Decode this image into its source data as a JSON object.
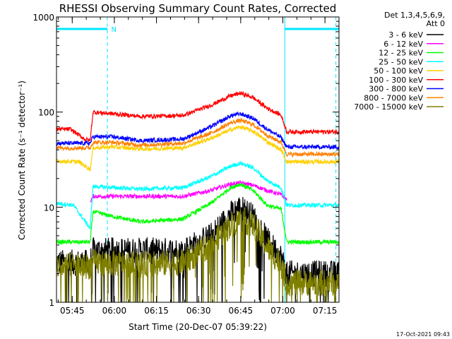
{
  "chart_data": {
    "type": "line",
    "title": "RHESSI Observing Summary Count Rates, Corrected",
    "xlabel": "Start Time (20-Dec-07 05:39:22)",
    "ylabel": "Corrected Count Rate (s⁻¹ detector⁻¹)",
    "yscale": "log",
    "ylim": [
      1,
      1000
    ],
    "xlim_minutes": [
      0,
      100.6
    ],
    "x_ticks": [
      {
        "label": "05:45",
        "minute": 5.6
      },
      {
        "label": "06:00",
        "minute": 20.6
      },
      {
        "label": "06:15",
        "minute": 35.6
      },
      {
        "label": "06:30",
        "minute": 50.6
      },
      {
        "label": "06:45",
        "minute": 65.6
      },
      {
        "label": "07:00",
        "minute": 80.6
      },
      {
        "label": "07:15",
        "minute": 95.6
      }
    ],
    "y_ticks": [
      {
        "label": "1",
        "value": 1
      },
      {
        "label": "10",
        "value": 10
      },
      {
        "label": "100",
        "value": 100
      },
      {
        "label": "1000",
        "value": 1000
      }
    ],
    "legend_header": [
      "Det 1,3,4,5,6,9,",
      "Att 0"
    ],
    "legend_position": "right",
    "night_intervals_minutes": [
      [
        0,
        18.1
      ],
      [
        81.3,
        100.6
      ]
    ],
    "saa_marker": {
      "label": "N",
      "minute": 19.0
    },
    "dashed_markers_minutes": [
      18.1,
      99.5
    ],
    "series": [
      {
        "name": "3 - 6 keV",
        "color": "#000000",
        "values": [
          [
            0,
            2.6
          ],
          [
            12,
            2.6
          ],
          [
            13,
            3.5
          ],
          [
            30,
            3.5
          ],
          [
            45,
            3.5
          ],
          [
            55,
            5
          ],
          [
            62,
            8.5
          ],
          [
            65.5,
            10
          ],
          [
            70,
            8
          ],
          [
            75,
            4.5
          ],
          [
            80,
            3
          ],
          [
            82,
            2
          ],
          [
            100.6,
            2
          ]
        ]
      },
      {
        "name": "6 - 12 keV",
        "color": "#ff00ff",
        "values": [
          [
            12,
            11.5
          ],
          [
            13,
            13
          ],
          [
            30,
            13
          ],
          [
            45,
            13
          ],
          [
            55,
            15
          ],
          [
            62,
            17.5
          ],
          [
            65.5,
            18
          ],
          [
            70,
            17
          ],
          [
            75,
            15
          ],
          [
            80,
            13.5
          ],
          [
            82,
            12
          ]
        ]
      },
      {
        "name": "12 - 25 keV",
        "color": "#00ff00",
        "values": [
          [
            0,
            4.3
          ],
          [
            5,
            4.3
          ],
          [
            12,
            4.3
          ],
          [
            13,
            9
          ],
          [
            20,
            8
          ],
          [
            30,
            7
          ],
          [
            45,
            7.5
          ],
          [
            55,
            11
          ],
          [
            62,
            16
          ],
          [
            65.5,
            17.5
          ],
          [
            70,
            15
          ],
          [
            75,
            10.5
          ],
          [
            80,
            9.5
          ],
          [
            82,
            4.3
          ],
          [
            100.6,
            4.3
          ]
        ]
      },
      {
        "name": "25 - 50 keV",
        "color": "#00ffff",
        "values": [
          [
            0,
            11
          ],
          [
            6,
            10.5
          ],
          [
            12,
            6
          ],
          [
            13,
            16.5
          ],
          [
            30,
            15.5
          ],
          [
            45,
            16
          ],
          [
            55,
            21
          ],
          [
            62,
            27
          ],
          [
            65.5,
            29
          ],
          [
            70,
            26
          ],
          [
            75,
            19
          ],
          [
            80,
            16
          ],
          [
            82,
            10.5
          ],
          [
            100.6,
            10.5
          ]
        ]
      },
      {
        "name": "50 - 100 keV",
        "color": "#ffd000",
        "values": [
          [
            0,
            30.5
          ],
          [
            8,
            30
          ],
          [
            12,
            25
          ],
          [
            13,
            42
          ],
          [
            20,
            43
          ],
          [
            30,
            41
          ],
          [
            45,
            42
          ],
          [
            55,
            53
          ],
          [
            62,
            65
          ],
          [
            65.5,
            70
          ],
          [
            70,
            63
          ],
          [
            75,
            49
          ],
          [
            80,
            40
          ],
          [
            82,
            30
          ],
          [
            100.6,
            30
          ]
        ]
      },
      {
        "name": "100 - 300 keV",
        "color": "#ff0000",
        "values": [
          [
            0,
            66
          ],
          [
            5,
            66
          ],
          [
            10,
            52
          ],
          [
            12,
            50
          ],
          [
            13,
            100
          ],
          [
            20,
            96
          ],
          [
            30,
            90
          ],
          [
            45,
            92
          ],
          [
            55,
            118
          ],
          [
            62,
            148
          ],
          [
            65.5,
            158
          ],
          [
            70,
            142
          ],
          [
            75,
            110
          ],
          [
            80,
            93
          ],
          [
            82,
            62
          ],
          [
            100.6,
            62
          ]
        ]
      },
      {
        "name": "300 - 800 keV",
        "color": "#0000ff",
        "values": [
          [
            0,
            47
          ],
          [
            12,
            47
          ],
          [
            13,
            55
          ],
          [
            20,
            55
          ],
          [
            30,
            50
          ],
          [
            45,
            52
          ],
          [
            55,
            70
          ],
          [
            62,
            91
          ],
          [
            65.5,
            96
          ],
          [
            70,
            86
          ],
          [
            75,
            66
          ],
          [
            80,
            54
          ],
          [
            82,
            43
          ],
          [
            100.6,
            43
          ]
        ]
      },
      {
        "name": "800 - 7000 keV",
        "color": "#ff8000",
        "values": [
          [
            0,
            42
          ],
          [
            12,
            42
          ],
          [
            13,
            48
          ],
          [
            20,
            48
          ],
          [
            30,
            45
          ],
          [
            45,
            47
          ],
          [
            55,
            60
          ],
          [
            62,
            77
          ],
          [
            65.5,
            82
          ],
          [
            70,
            74
          ],
          [
            75,
            57
          ],
          [
            80,
            48
          ],
          [
            82,
            36
          ],
          [
            100.6,
            36
          ]
        ]
      },
      {
        "name": "7000 - 15000 keV",
        "color": "#808000",
        "values": [
          [
            0,
            2.4
          ],
          [
            12,
            2.4
          ],
          [
            13,
            2.6
          ],
          [
            30,
            2.5
          ],
          [
            45,
            2.6
          ],
          [
            55,
            4.0
          ],
          [
            62,
            6.5
          ],
          [
            65.5,
            7.5
          ],
          [
            70,
            6.5
          ],
          [
            75,
            3.8
          ],
          [
            80,
            2.5
          ],
          [
            82,
            1.6
          ],
          [
            100.6,
            1.6
          ]
        ]
      }
    ]
  },
  "timestamp": "17-Oct-2021 09:43"
}
